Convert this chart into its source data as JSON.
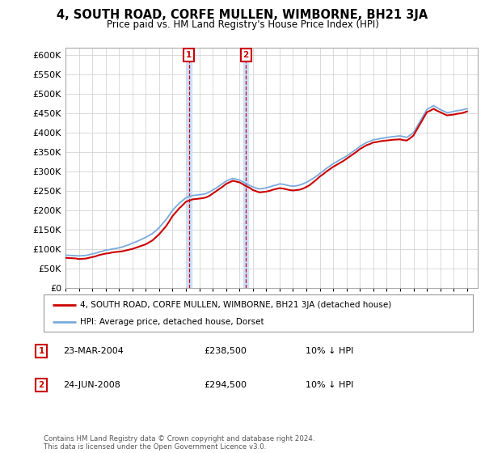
{
  "title": "4, SOUTH ROAD, CORFE MULLEN, WIMBORNE, BH21 3JA",
  "subtitle": "Price paid vs. HM Land Registry's House Price Index (HPI)",
  "ylim": [
    0,
    620000
  ],
  "yticks": [
    0,
    50000,
    100000,
    150000,
    200000,
    250000,
    300000,
    350000,
    400000,
    450000,
    500000,
    550000,
    600000
  ],
  "xlim_start": 1995.0,
  "xlim_end": 2025.8,
  "transactions": [
    {
      "label": "1",
      "date": "23-MAR-2004",
      "price": 238500,
      "year": 2004.22,
      "note": "10% ↓ HPI"
    },
    {
      "label": "2",
      "date": "24-JUN-2008",
      "price": 294500,
      "year": 2008.48,
      "note": "10% ↓ HPI"
    }
  ],
  "legend_line1": "4, SOUTH ROAD, CORFE MULLEN, WIMBORNE, BH21 3JA (detached house)",
  "legend_line2": "HPI: Average price, detached house, Dorset",
  "footer": "Contains HM Land Registry data © Crown copyright and database right 2024.\nThis data is licensed under the Open Government Licence v3.0.",
  "hpi_color": "#7aaadd",
  "price_color": "#cc0000",
  "shade_color": "#cce0ff",
  "marker_color": "#cc0000",
  "hpi_x": [
    1995.0,
    1995.25,
    1995.5,
    1995.75,
    1996.0,
    1996.25,
    1996.5,
    1996.75,
    1997.0,
    1997.25,
    1997.5,
    1997.75,
    1998.0,
    1998.25,
    1998.5,
    1998.75,
    1999.0,
    1999.25,
    1999.5,
    1999.75,
    2000.0,
    2000.25,
    2000.5,
    2000.75,
    2001.0,
    2001.25,
    2001.5,
    2001.75,
    2002.0,
    2002.25,
    2002.5,
    2002.75,
    2003.0,
    2003.25,
    2003.5,
    2003.75,
    2004.0,
    2004.25,
    2004.5,
    2004.75,
    2005.0,
    2005.25,
    2005.5,
    2005.75,
    2006.0,
    2006.25,
    2006.5,
    2006.75,
    2007.0,
    2007.25,
    2007.5,
    2007.75,
    2008.0,
    2008.25,
    2008.5,
    2008.75,
    2009.0,
    2009.25,
    2009.5,
    2009.75,
    2010.0,
    2010.25,
    2010.5,
    2010.75,
    2011.0,
    2011.25,
    2011.5,
    2011.75,
    2012.0,
    2012.25,
    2012.5,
    2012.75,
    2013.0,
    2013.25,
    2013.5,
    2013.75,
    2014.0,
    2014.25,
    2014.5,
    2014.75,
    2015.0,
    2015.25,
    2015.5,
    2015.75,
    2016.0,
    2016.25,
    2016.5,
    2016.75,
    2017.0,
    2017.25,
    2017.5,
    2017.75,
    2018.0,
    2018.25,
    2018.5,
    2018.75,
    2019.0,
    2019.25,
    2019.5,
    2019.75,
    2020.0,
    2020.25,
    2020.5,
    2020.75,
    2021.0,
    2021.25,
    2021.5,
    2021.75,
    2022.0,
    2022.25,
    2022.5,
    2022.75,
    2023.0,
    2023.25,
    2023.5,
    2023.75,
    2024.0,
    2024.25,
    2024.5,
    2024.75,
    2025.0
  ],
  "hpi_y": [
    84000,
    83500,
    83000,
    82500,
    82000,
    82500,
    83000,
    85000,
    87000,
    89000,
    92000,
    94000,
    97000,
    98000,
    100000,
    101000,
    103000,
    105000,
    108000,
    111000,
    115000,
    118000,
    122000,
    126000,
    130000,
    135000,
    140000,
    147000,
    155000,
    165000,
    175000,
    187000,
    200000,
    209000,
    218000,
    225000,
    232000,
    235000,
    238000,
    239000,
    240000,
    241000,
    243000,
    247000,
    252000,
    257000,
    263000,
    269000,
    275000,
    279000,
    282000,
    280000,
    278000,
    273000,
    268000,
    264000,
    260000,
    257000,
    255000,
    256000,
    258000,
    260000,
    263000,
    265000,
    268000,
    267000,
    265000,
    263000,
    262000,
    263000,
    265000,
    268000,
    272000,
    277000,
    282000,
    288000,
    295000,
    301000,
    308000,
    314000,
    320000,
    325000,
    330000,
    335000,
    340000,
    346000,
    352000,
    358000,
    365000,
    370000,
    375000,
    378000,
    382000,
    383000,
    385000,
    386000,
    388000,
    389000,
    390000,
    391000,
    392000,
    390000,
    388000,
    394000,
    400000,
    415000,
    430000,
    445000,
    460000,
    465000,
    470000,
    465000,
    460000,
    456000,
    452000,
    453000,
    455000,
    457000,
    458000,
    460000,
    462000
  ],
  "price_x": [
    1995.0,
    1995.25,
    1995.5,
    1995.75,
    1996.0,
    1996.25,
    1996.5,
    1996.75,
    1997.0,
    1997.25,
    1997.5,
    1997.75,
    1998.0,
    1998.25,
    1998.5,
    1998.75,
    1999.0,
    1999.25,
    1999.5,
    1999.75,
    2000.0,
    2000.25,
    2000.5,
    2000.75,
    2001.0,
    2001.25,
    2001.5,
    2001.75,
    2002.0,
    2002.25,
    2002.5,
    2002.75,
    2003.0,
    2003.25,
    2003.5,
    2003.75,
    2004.0,
    2004.25,
    2004.5,
    2004.75,
    2005.0,
    2005.25,
    2005.5,
    2005.75,
    2006.0,
    2006.25,
    2006.5,
    2006.75,
    2007.0,
    2007.25,
    2007.5,
    2007.75,
    2008.0,
    2008.25,
    2008.5,
    2008.75,
    2009.0,
    2009.25,
    2009.5,
    2009.75,
    2010.0,
    2010.25,
    2010.5,
    2010.75,
    2011.0,
    2011.25,
    2011.5,
    2011.75,
    2012.0,
    2012.25,
    2012.5,
    2012.75,
    2013.0,
    2013.25,
    2013.5,
    2013.75,
    2014.0,
    2014.25,
    2014.5,
    2014.75,
    2015.0,
    2015.25,
    2015.5,
    2015.75,
    2016.0,
    2016.25,
    2016.5,
    2016.75,
    2017.0,
    2017.25,
    2017.5,
    2017.75,
    2018.0,
    2018.25,
    2018.5,
    2018.75,
    2019.0,
    2019.25,
    2019.5,
    2019.75,
    2020.0,
    2020.25,
    2020.5,
    2020.75,
    2021.0,
    2021.25,
    2021.5,
    2021.75,
    2022.0,
    2022.25,
    2022.5,
    2022.75,
    2023.0,
    2023.25,
    2023.5,
    2023.75,
    2024.0,
    2024.25,
    2024.5,
    2024.75,
    2025.0
  ],
  "price_y": [
    77000,
    76500,
    76000,
    75500,
    74000,
    74500,
    75000,
    77000,
    79000,
    81000,
    84000,
    86000,
    88000,
    89000,
    91000,
    92000,
    93000,
    94000,
    96000,
    98000,
    100000,
    103000,
    106000,
    109000,
    112000,
    117000,
    122000,
    130000,
    138000,
    148000,
    158000,
    171000,
    185000,
    195000,
    205000,
    213000,
    222000,
    225000,
    228000,
    229000,
    230000,
    231000,
    233000,
    237000,
    243000,
    249000,
    255000,
    261000,
    268000,
    272000,
    276000,
    274000,
    272000,
    267000,
    262000,
    258000,
    252000,
    249000,
    246000,
    247000,
    248000,
    250000,
    253000,
    255000,
    257000,
    256000,
    254000,
    252000,
    251000,
    252000,
    253000,
    256000,
    260000,
    265000,
    272000,
    279000,
    287000,
    293000,
    300000,
    306000,
    312000,
    317000,
    322000,
    327000,
    333000,
    339000,
    345000,
    351000,
    358000,
    363000,
    368000,
    371000,
    375000,
    376000,
    378000,
    379000,
    380000,
    381000,
    382000,
    382500,
    383000,
    381000,
    380000,
    386000,
    393000,
    408000,
    423000,
    438000,
    453000,
    457000,
    462000,
    457000,
    453000,
    449000,
    445000,
    446000,
    447000,
    449000,
    450000,
    452000,
    455000
  ]
}
